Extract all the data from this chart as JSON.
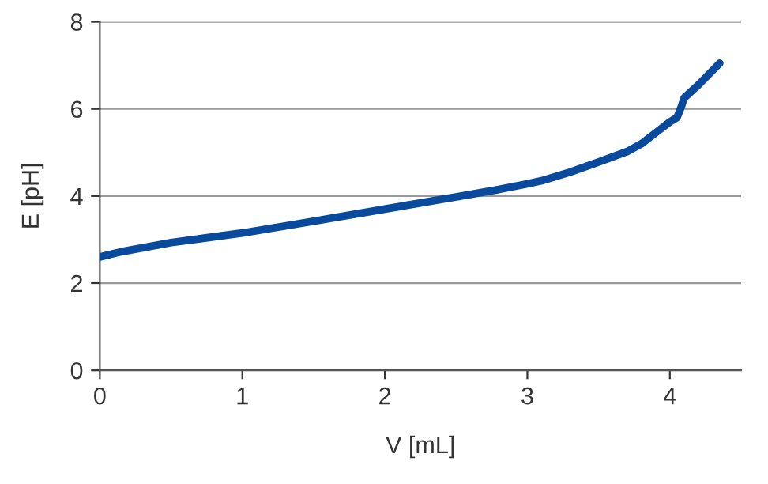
{
  "chart_data": {
    "type": "line",
    "xlabel": "V [mL]",
    "ylabel": "E [pH]",
    "series": [
      {
        "color": "#0a4a9c",
        "x": [
          0,
          0.15,
          0.5,
          1.0,
          1.5,
          2.0,
          2.5,
          2.8,
          3.0,
          3.1,
          3.3,
          3.5,
          3.7,
          3.8,
          3.9,
          4.0,
          4.05,
          4.08,
          4.1,
          4.2,
          4.35
        ],
        "values": [
          2.6,
          2.72,
          2.93,
          3.15,
          3.42,
          3.7,
          3.98,
          4.15,
          4.28,
          4.35,
          4.55,
          4.78,
          5.02,
          5.2,
          5.45,
          5.7,
          5.8,
          6.05,
          6.25,
          6.55,
          7.05
        ]
      }
    ],
    "xlim": [
      0,
      4.5
    ],
    "xticks": [
      0,
      1,
      2,
      3,
      4
    ],
    "ylim": [
      0,
      8
    ],
    "yticks": [
      0,
      2,
      4,
      6,
      8
    ],
    "grid": "y",
    "legend": false,
    "marker": "none",
    "line_style": "solid"
  }
}
